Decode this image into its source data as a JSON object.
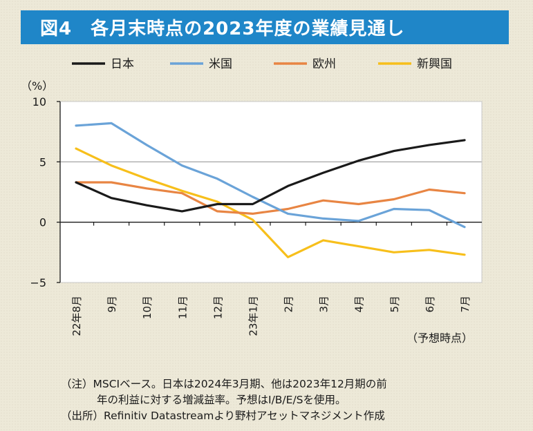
{
  "title": "図4　各月末時点の2023年度の業績見通し",
  "notes": {
    "note1": "（注）MSCIベース。日本は2024年3月期、他は2023年12月期の前",
    "note2": "年の利益に対する増減益率。予想はI/B/E/Sを使用。",
    "source": "（出所）Refinitiv Datastreamより野村アセットマネジメント作成"
  },
  "colors": {
    "title_bg": "#1f86c8",
    "japan": "#1a1a1a",
    "us": "#6aa3d8",
    "europe": "#e88543",
    "emerging": "#f7bf1b"
  },
  "chart_data": {
    "type": "line",
    "title": "",
    "ylabel": "（%）",
    "xlabel": "（予想時点）",
    "ylim": [
      -5,
      10
    ],
    "yticks": [
      "10",
      "5",
      "0",
      "−5"
    ],
    "ytick_values": [
      10,
      5,
      0,
      -5
    ],
    "grid": true,
    "legend_position": "top",
    "categories": [
      "22年8月",
      "9月",
      "10月",
      "11月",
      "12月",
      "23年1月",
      "2月",
      "3月",
      "4月",
      "5月",
      "6月",
      "7月"
    ],
    "series": [
      {
        "name": "日本",
        "color": "#1a1a1a",
        "values": [
          3.3,
          2.0,
          1.4,
          0.9,
          1.5,
          1.5,
          3.0,
          4.1,
          5.1,
          5.9,
          6.4,
          6.8
        ]
      },
      {
        "name": "米国",
        "color": "#6aa3d8",
        "values": [
          8.0,
          8.2,
          6.4,
          4.7,
          3.6,
          2.1,
          0.7,
          0.3,
          0.1,
          1.1,
          1.0,
          -0.4
        ]
      },
      {
        "name": "欧州",
        "color": "#e88543",
        "values": [
          3.3,
          3.3,
          2.8,
          2.4,
          0.9,
          0.7,
          1.1,
          1.8,
          1.5,
          1.9,
          2.7,
          2.4
        ]
      },
      {
        "name": "新興国",
        "color": "#f7bf1b",
        "values": [
          6.1,
          4.7,
          3.6,
          2.6,
          1.7,
          0.2,
          -2.9,
          -1.5,
          -2.0,
          -2.5,
          -2.3,
          -2.7
        ]
      }
    ]
  }
}
